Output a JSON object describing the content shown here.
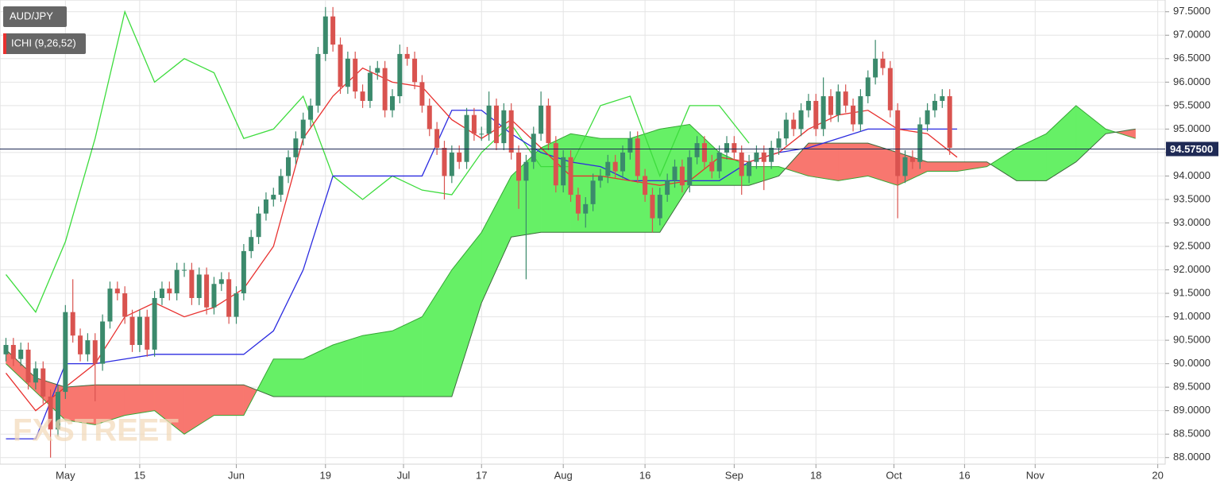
{
  "chart_data": {
    "type": "candlestick",
    "symbol": "AUD/JPY",
    "indicator": "ICHI (9,26,52)",
    "watermark": "FXSTREET",
    "ylim": [
      87.86,
      97.75
    ],
    "xlim": [
      -0.8,
      156
    ],
    "grid": true,
    "yticks": [
      {
        "value": 88.0,
        "label": "88.0000"
      },
      {
        "value": 88.5,
        "label": "88.5000"
      },
      {
        "value": 89.0,
        "label": "89.0000"
      },
      {
        "value": 89.5,
        "label": "89.5000"
      },
      {
        "value": 90.0,
        "label": "90.0000"
      },
      {
        "value": 90.5,
        "label": "90.5000"
      },
      {
        "value": 91.0,
        "label": "91.0000"
      },
      {
        "value": 91.5,
        "label": "91.5000"
      },
      {
        "value": 92.0,
        "label": "92.0000"
      },
      {
        "value": 92.5,
        "label": "92.5000"
      },
      {
        "value": 93.0,
        "label": "93.0000"
      },
      {
        "value": 93.5,
        "label": "93.5000"
      },
      {
        "value": 94.0,
        "label": "94.0000"
      },
      {
        "value": 94.5,
        "label": "94.5000"
      },
      {
        "value": 95.0,
        "label": "95.0000"
      },
      {
        "value": 95.5,
        "label": "95.5000"
      },
      {
        "value": 96.0,
        "label": "96.0000"
      },
      {
        "value": 96.5,
        "label": "96.5000"
      },
      {
        "value": 97.0,
        "label": "97.0000"
      },
      {
        "value": 97.5,
        "label": "97.5000"
      }
    ],
    "xticks": [
      {
        "value": 8,
        "label": "May"
      },
      {
        "value": 18,
        "label": "15"
      },
      {
        "value": 31,
        "label": "Jun"
      },
      {
        "value": 43,
        "label": "19"
      },
      {
        "value": 53.5,
        "label": "Jul"
      },
      {
        "value": 64,
        "label": "17"
      },
      {
        "value": 75,
        "label": "Aug"
      },
      {
        "value": 86,
        "label": "16"
      },
      {
        "value": 98,
        "label": "Sep"
      },
      {
        "value": 109,
        "label": "18"
      },
      {
        "value": 119.5,
        "label": "Oct"
      },
      {
        "value": 129,
        "label": "16"
      },
      {
        "value": 138.5,
        "label": "Nov"
      },
      {
        "value": 155,
        "label": "20"
      }
    ],
    "last_price": {
      "value": 94.575,
      "label": "94.57500"
    },
    "up_color": "#3b8a6c",
    "down_color": "#d9534f",
    "candles": [
      [
        90.2,
        90.55,
        90.05,
        90.4
      ],
      [
        90.4,
        90.55,
        89.95,
        90.1
      ],
      [
        90.1,
        90.45,
        89.95,
        90.3
      ],
      [
        90.3,
        90.45,
        89.45,
        89.6
      ],
      [
        89.6,
        90.05,
        89.45,
        89.9
      ],
      [
        89.9,
        90.05,
        89.15,
        89.3
      ],
      [
        89.3,
        89.45,
        88.0,
        88.6
      ],
      [
        88.6,
        89.55,
        88.45,
        89.4
      ],
      [
        89.4,
        91.25,
        89.25,
        91.1
      ],
      [
        91.1,
        91.8,
        90.45,
        90.6
      ],
      [
        90.6,
        90.75,
        90.05,
        90.2
      ],
      [
        90.2,
        90.65,
        90.05,
        90.5
      ],
      [
        90.5,
        90.65,
        89.2,
        90.0
      ],
      [
        90.0,
        91.05,
        89.85,
        90.9
      ],
      [
        90.9,
        91.75,
        90.75,
        91.6
      ],
      [
        91.6,
        91.75,
        91.35,
        91.5
      ],
      [
        91.5,
        91.65,
        90.85,
        91.0
      ],
      [
        91.0,
        91.15,
        90.25,
        90.4
      ],
      [
        90.4,
        91.15,
        90.25,
        91.0
      ],
      [
        91.0,
        91.15,
        90.15,
        90.3
      ],
      [
        90.3,
        91.55,
        90.15,
        91.4
      ],
      [
        91.4,
        91.75,
        91.25,
        91.6
      ],
      [
        91.6,
        91.75,
        91.35,
        91.5
      ],
      [
        91.5,
        92.15,
        91.35,
        92.0
      ],
      [
        92.0,
        92.15,
        91.85,
        92.0
      ],
      [
        92.0,
        92.15,
        91.25,
        91.4
      ],
      [
        91.4,
        92.05,
        91.25,
        91.9
      ],
      [
        91.9,
        92.05,
        91.05,
        91.2
      ],
      [
        91.2,
        91.85,
        91.05,
        91.7
      ],
      [
        91.7,
        91.95,
        91.55,
        91.8
      ],
      [
        91.8,
        91.95,
        90.85,
        91.0
      ],
      [
        91.0,
        91.65,
        90.85,
        91.5
      ],
      [
        91.5,
        92.55,
        91.35,
        92.4
      ],
      [
        92.4,
        92.85,
        92.25,
        92.7
      ],
      [
        92.7,
        93.35,
        92.55,
        93.2
      ],
      [
        93.2,
        93.65,
        93.05,
        93.5
      ],
      [
        93.5,
        93.75,
        93.35,
        93.6
      ],
      [
        93.6,
        94.15,
        93.45,
        94.0
      ],
      [
        94.0,
        94.55,
        93.85,
        94.4
      ],
      [
        94.4,
        94.95,
        94.25,
        94.8
      ],
      [
        94.8,
        95.35,
        94.65,
        95.2
      ],
      [
        95.2,
        95.65,
        95.05,
        95.5
      ],
      [
        95.5,
        96.75,
        95.35,
        96.6
      ],
      [
        96.6,
        97.6,
        96.45,
        97.4
      ],
      [
        97.4,
        97.6,
        96.65,
        96.8
      ],
      [
        96.8,
        96.95,
        95.75,
        95.9
      ],
      [
        95.9,
        96.65,
        95.75,
        96.5
      ],
      [
        96.5,
        96.65,
        95.65,
        95.8
      ],
      [
        95.8,
        95.95,
        95.45,
        95.6
      ],
      [
        95.6,
        96.35,
        95.45,
        96.2
      ],
      [
        96.2,
        96.45,
        96.05,
        96.3
      ],
      [
        96.3,
        96.45,
        95.25,
        95.4
      ],
      [
        95.4,
        95.85,
        95.25,
        95.7
      ],
      [
        95.7,
        96.8,
        95.55,
        96.6
      ],
      [
        96.6,
        96.75,
        96.35,
        96.5
      ],
      [
        96.5,
        96.65,
        95.85,
        96.0
      ],
      [
        96.0,
        96.15,
        95.35,
        95.5
      ],
      [
        95.5,
        95.65,
        94.85,
        95.0
      ],
      [
        95.0,
        95.15,
        94.45,
        94.6
      ],
      [
        94.6,
        94.75,
        93.5,
        94.0
      ],
      [
        94.0,
        94.65,
        93.85,
        94.5
      ],
      [
        94.5,
        94.65,
        94.15,
        94.3
      ],
      [
        94.3,
        95.45,
        94.15,
        95.3
      ],
      [
        95.3,
        95.45,
        94.75,
        94.9
      ],
      [
        94.9,
        95.05,
        94.75,
        94.9
      ],
      [
        94.9,
        95.8,
        94.75,
        95.5
      ],
      [
        95.5,
        95.65,
        94.55,
        94.7
      ],
      [
        94.7,
        95.55,
        94.55,
        95.4
      ],
      [
        95.4,
        95.55,
        94.35,
        94.5
      ],
      [
        94.5,
        94.65,
        93.3,
        93.9
      ],
      [
        93.9,
        94.45,
        91.8,
        94.3
      ],
      [
        94.3,
        95.05,
        94.15,
        94.9
      ],
      [
        94.9,
        95.8,
        94.75,
        95.5
      ],
      [
        95.5,
        95.65,
        94.55,
        94.7
      ],
      [
        94.7,
        94.85,
        93.65,
        93.8
      ],
      [
        93.8,
        94.55,
        93.65,
        94.4
      ],
      [
        94.4,
        94.55,
        93.45,
        93.6
      ],
      [
        93.6,
        93.75,
        93.05,
        93.2
      ],
      [
        93.2,
        93.55,
        92.9,
        93.4
      ],
      [
        93.4,
        94.05,
        93.25,
        93.9
      ],
      [
        93.9,
        94.15,
        93.75,
        94.0
      ],
      [
        94.0,
        94.45,
        93.85,
        94.3
      ],
      [
        94.3,
        94.45,
        93.95,
        94.1
      ],
      [
        94.1,
        94.65,
        93.95,
        94.5
      ],
      [
        94.5,
        94.95,
        94.35,
        94.8
      ],
      [
        94.8,
        94.95,
        93.85,
        94.0
      ],
      [
        94.0,
        94.15,
        93.45,
        93.6
      ],
      [
        93.6,
        93.75,
        92.8,
        93.1
      ],
      [
        93.1,
        93.75,
        92.95,
        93.6
      ],
      [
        93.6,
        94.05,
        93.45,
        93.9
      ],
      [
        93.9,
        94.35,
        93.75,
        94.2
      ],
      [
        94.2,
        94.35,
        93.65,
        93.8
      ],
      [
        93.8,
        94.55,
        93.65,
        94.4
      ],
      [
        94.4,
        94.85,
        94.25,
        94.7
      ],
      [
        94.7,
        94.85,
        94.15,
        94.3
      ],
      [
        94.3,
        94.45,
        93.95,
        94.1
      ],
      [
        94.1,
        94.65,
        93.95,
        94.5
      ],
      [
        94.5,
        94.85,
        94.35,
        94.7
      ],
      [
        94.7,
        94.85,
        94.35,
        94.5
      ],
      [
        94.5,
        94.65,
        93.6,
        94.0
      ],
      [
        94.0,
        94.45,
        93.85,
        94.3
      ],
      [
        94.3,
        94.65,
        94.15,
        94.5
      ],
      [
        94.5,
        94.65,
        93.7,
        94.3
      ],
      [
        94.3,
        94.75,
        94.15,
        94.6
      ],
      [
        94.6,
        94.95,
        94.45,
        94.8
      ],
      [
        94.8,
        95.35,
        94.65,
        95.2
      ],
      [
        95.2,
        95.35,
        94.85,
        95.0
      ],
      [
        95.0,
        95.55,
        94.85,
        95.4
      ],
      [
        95.4,
        95.75,
        95.25,
        95.6
      ],
      [
        95.6,
        95.75,
        94.85,
        95.0
      ],
      [
        95.0,
        96.1,
        94.85,
        95.7
      ],
      [
        95.7,
        95.85,
        95.15,
        95.3
      ],
      [
        95.3,
        95.95,
        95.15,
        95.8
      ],
      [
        95.8,
        95.95,
        95.35,
        95.5
      ],
      [
        95.5,
        95.65,
        94.95,
        95.1
      ],
      [
        95.1,
        95.85,
        94.95,
        95.7
      ],
      [
        95.7,
        96.25,
        95.55,
        96.1
      ],
      [
        96.1,
        96.9,
        95.95,
        96.5
      ],
      [
        96.5,
        96.65,
        96.15,
        96.3
      ],
      [
        96.3,
        96.45,
        95.25,
        95.4
      ],
      [
        95.4,
        95.55,
        93.1,
        94.0
      ],
      [
        94.0,
        94.55,
        93.85,
        94.4
      ],
      [
        94.4,
        94.55,
        94.15,
        94.3
      ],
      [
        94.3,
        95.25,
        94.15,
        95.1
      ],
      [
        95.1,
        95.55,
        94.95,
        95.4
      ],
      [
        95.4,
        95.75,
        95.25,
        95.6
      ],
      [
        95.6,
        95.85,
        95.45,
        95.7
      ],
      [
        95.7,
        95.85,
        94.45,
        94.6
      ]
    ],
    "series": [
      {
        "kind": "cloud",
        "up_color": "#66f066",
        "down_color": "#f8776f",
        "x": [
          0,
          4,
          8,
          12,
          16,
          20,
          24,
          28,
          32,
          36,
          40,
          44,
          48,
          52,
          56,
          60,
          64,
          68,
          72,
          76,
          80,
          84,
          88,
          92,
          96,
          100,
          104,
          108,
          112,
          116,
          120,
          124,
          128,
          132,
          136,
          140,
          144,
          148,
          152
        ],
        "span_a": [
          90.0,
          89.4,
          88.8,
          88.7,
          88.9,
          89.0,
          88.5,
          88.9,
          88.9,
          90.1,
          90.1,
          90.4,
          90.6,
          90.7,
          91.0,
          92.0,
          92.8,
          94.0,
          94.6,
          94.9,
          94.8,
          94.8,
          95.0,
          95.1,
          94.5,
          94.2,
          94.2,
          94.0,
          93.9,
          94.0,
          93.8,
          94.1,
          94.1,
          94.2,
          94.6,
          94.9,
          95.5,
          95.0,
          94.8
        ],
        "span_b": [
          90.3,
          89.7,
          89.5,
          89.55,
          89.55,
          89.55,
          89.55,
          89.55,
          89.55,
          89.3,
          89.3,
          89.3,
          89.3,
          89.3,
          89.3,
          89.3,
          91.3,
          92.7,
          92.8,
          92.8,
          92.8,
          92.8,
          92.8,
          93.8,
          93.8,
          93.8,
          94.0,
          94.7,
          94.7,
          94.7,
          94.5,
          94.3,
          94.3,
          94.3,
          93.9,
          93.9,
          94.3,
          94.9,
          95.0
        ]
      },
      {
        "kind": "line",
        "color": "#3ddc3d",
        "x": [
          0,
          4,
          8,
          12,
          16,
          20,
          24,
          28,
          32,
          36,
          40,
          44,
          48,
          52,
          56,
          60,
          64,
          68,
          72,
          76,
          80,
          84,
          88,
          92,
          96,
          100
        ],
        "values": [
          91.9,
          91.1,
          92.6,
          94.8,
          97.5,
          96.0,
          96.5,
          96.2,
          94.8,
          95.0,
          95.7,
          94.0,
          93.5,
          94.0,
          93.7,
          93.6,
          94.5,
          95.1,
          94.2,
          94.2,
          95.5,
          95.7,
          94.0,
          95.5,
          95.5,
          94.7
        ]
      },
      {
        "kind": "line",
        "color": "#2b2be0",
        "x": [
          0,
          4,
          8,
          12,
          16,
          20,
          24,
          28,
          32,
          36,
          40,
          44,
          48,
          52,
          56,
          60,
          64,
          68,
          72,
          76,
          80,
          84,
          88,
          92,
          96,
          100,
          104,
          108,
          112,
          116,
          120,
          124,
          128
        ],
        "values": [
          88.4,
          88.4,
          90.0,
          90.0,
          90.1,
          90.2,
          90.2,
          90.2,
          90.2,
          90.7,
          92.0,
          94.0,
          94.0,
          94.0,
          94.0,
          95.4,
          95.4,
          94.9,
          94.5,
          94.3,
          94.2,
          93.9,
          93.9,
          93.9,
          93.9,
          94.3,
          94.5,
          94.6,
          94.8,
          95.0,
          95.0,
          95.0,
          95.0
        ]
      },
      {
        "kind": "line",
        "color": "#e8312f",
        "x": [
          0,
          4,
          8,
          12,
          16,
          20,
          24,
          28,
          32,
          36,
          40,
          44,
          48,
          52,
          56,
          60,
          64,
          68,
          72,
          76,
          80,
          84,
          88,
          92,
          96,
          100,
          104,
          108,
          112,
          116,
          120,
          124,
          128
        ],
        "values": [
          89.8,
          89.0,
          89.5,
          90.0,
          91.0,
          91.3,
          91.0,
          91.2,
          91.6,
          92.5,
          94.8,
          95.7,
          96.3,
          96.0,
          95.9,
          95.2,
          94.8,
          95.2,
          94.6,
          94.0,
          94.0,
          93.9,
          93.8,
          93.9,
          94.4,
          94.3,
          94.5,
          95.0,
          95.3,
          95.4,
          95.0,
          94.9,
          94.4
        ]
      }
    ]
  }
}
